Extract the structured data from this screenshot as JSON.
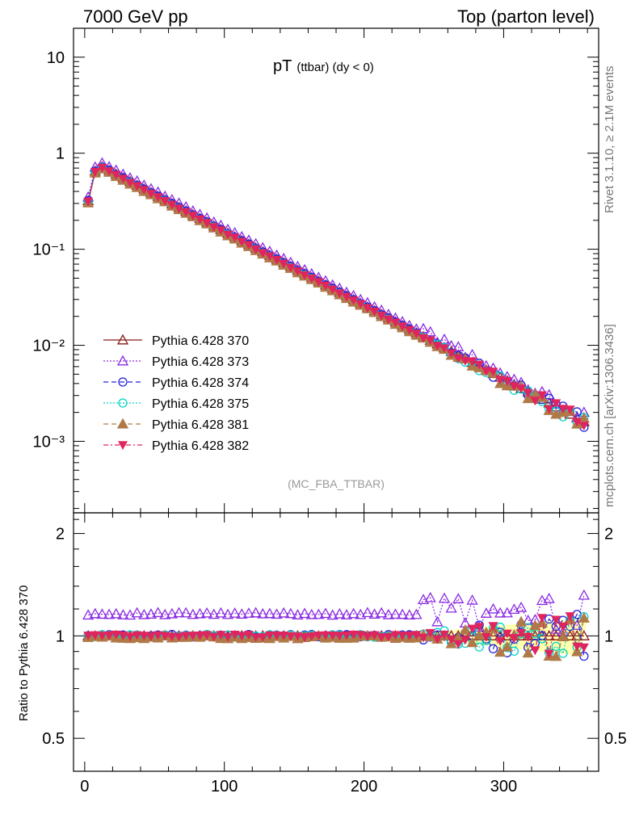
{
  "header": {
    "left": "7000 GeV pp",
    "right": "Top (parton level)"
  },
  "side_labels": {
    "rivet": "Rivet 3.1.10, ≥ 2.1M events",
    "mcplots": "mcplots.cern.ch [arXiv:1306.3436]"
  },
  "chart_data": {
    "type": "scatter",
    "title": "pT (ttbar) (dy < 0)",
    "title_main": "pT",
    "title_sub": "(ttbar) (dy < 0)",
    "analysis_label": "(MC_FBA_TTBAR)",
    "ratio_ylabel": "Ratio to Pythia 6.428 370",
    "x_ticks": [
      "0",
      "100",
      "200",
      "300"
    ],
    "y_ticks_main": [
      "10",
      "1",
      "10⁻¹",
      "10⁻²",
      "10⁻³"
    ],
    "y_ticks_ratio": [
      "2",
      "1",
      "0.5"
    ],
    "xlim": [
      -8,
      368
    ],
    "ylim_main": [
      0.00018,
      20
    ],
    "ylim_ratio": [
      0.4,
      2.3
    ],
    "yscale_main": "log",
    "yscale_ratio": "log",
    "legend_position": "bottom-left",
    "curve_params": {
      "bin_width": 5,
      "x_start": 2.5,
      "n_bins": 72,
      "peak_value": 0.72,
      "peak_x": 12.5,
      "exp_slope": 0.0177,
      "first_bins": [
        0.32,
        0.65,
        0.72
      ]
    },
    "series": [
      {
        "name": "Pythia 6.428 370",
        "color": "#8b1a1a",
        "marker": "triangle-up-open",
        "dash": "",
        "ratio": 1.0,
        "scale": 1.0
      },
      {
        "name": "Pythia 6.428 373",
        "color": "#8a2be2",
        "marker": "triangle-up-open",
        "dash": "2,2",
        "ratio": 1.16,
        "scale": 1.1
      },
      {
        "name": "Pythia 6.428 374",
        "color": "#2222dd",
        "marker": "circle-open",
        "dash": "6,4",
        "ratio": 1.0,
        "scale": 1.0
      },
      {
        "name": "Pythia 6.428 375",
        "color": "#00d4c8",
        "marker": "circle-open",
        "dash": "2,2",
        "ratio": 1.0,
        "scale": 0.97
      },
      {
        "name": "Pythia 6.428 381",
        "color": "#b07a48",
        "marker": "triangle-up-filled",
        "dash": "6,4",
        "ratio": 0.99,
        "scale": 0.95
      },
      {
        "name": "Pythia 6.428 382",
        "color": "#e0245e",
        "marker": "triangle-down-filled",
        "dash": "6,3,2,3",
        "ratio": 1.0,
        "scale": 0.98
      }
    ]
  }
}
